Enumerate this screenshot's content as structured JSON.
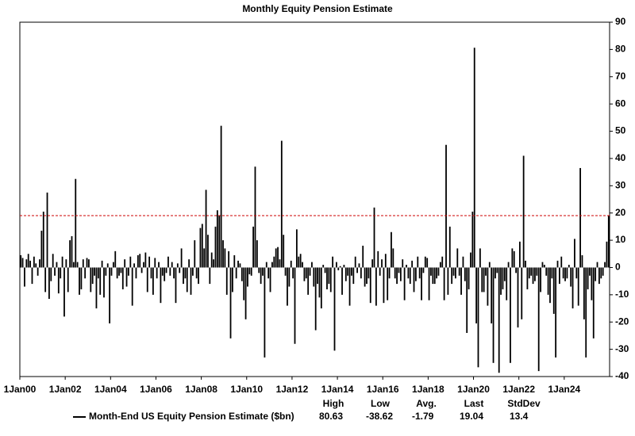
{
  "chart_data": {
    "type": "bar",
    "title": "Monthly Equity Pension Estimate",
    "categories": [
      "1Jan00",
      null,
      null,
      null,
      null,
      null,
      null,
      null,
      null,
      null,
      null,
      null,
      null,
      null,
      null,
      null,
      null,
      null,
      null,
      null,
      null,
      null,
      null,
      null,
      "1Jan02",
      null,
      null,
      null,
      null,
      null,
      null,
      null,
      null,
      null,
      null,
      null,
      null,
      null,
      null,
      null,
      null,
      null,
      null,
      null,
      null,
      null,
      null,
      null,
      "1Jan04",
      null,
      null,
      null,
      null,
      null,
      null,
      null,
      null,
      null,
      null,
      null,
      null,
      null,
      null,
      null,
      null,
      null,
      null,
      null,
      null,
      null,
      null,
      null,
      "1Jan06",
      null,
      null,
      null,
      null,
      null,
      null,
      null,
      null,
      null,
      null,
      null,
      null,
      null,
      null,
      null,
      null,
      null,
      null,
      null,
      null,
      null,
      null,
      null,
      "1Jan08",
      null,
      null,
      null,
      null,
      null,
      null,
      null,
      null,
      null,
      null,
      null,
      null,
      null,
      null,
      null,
      null,
      null,
      null,
      null,
      null,
      null,
      null,
      null,
      "1Jan10",
      null,
      null,
      null,
      null,
      null,
      null,
      null,
      null,
      null,
      null,
      null,
      null,
      null,
      null,
      null,
      null,
      null,
      null,
      null,
      null,
      null,
      null,
      null,
      "1Jan12",
      null,
      null,
      null,
      null,
      null,
      null,
      null,
      null,
      null,
      null,
      null,
      null,
      null,
      null,
      null,
      null,
      null,
      null,
      null,
      null,
      null,
      null,
      null,
      "1Jan14",
      null,
      null,
      null,
      null,
      null,
      null,
      null,
      null,
      null,
      null,
      null,
      null,
      null,
      null,
      null,
      null,
      null,
      null,
      null,
      null,
      null,
      null,
      null,
      "1Jan16",
      null,
      null,
      null,
      null,
      null,
      null,
      null,
      null,
      null,
      null,
      null,
      null,
      null,
      null,
      null,
      null,
      null,
      null,
      null,
      null,
      null,
      null,
      null,
      "1Jan18",
      null,
      null,
      null,
      null,
      null,
      null,
      null,
      null,
      null,
      null,
      null,
      null,
      null,
      null,
      null,
      null,
      null,
      null,
      null,
      null,
      null,
      null,
      null,
      "1Jan20",
      null,
      null,
      null,
      null,
      null,
      null,
      null,
      null,
      null,
      null,
      null,
      null,
      null,
      null,
      null,
      null,
      null,
      null,
      null,
      null,
      null,
      null,
      null,
      "1Jan22",
      null,
      null,
      null,
      null,
      null,
      null,
      null,
      null,
      null,
      null,
      null,
      null,
      null,
      null,
      null,
      null,
      null,
      null,
      null,
      null,
      null,
      null,
      null,
      "1Jan24",
      null,
      null,
      null,
      null,
      null,
      null,
      null,
      null,
      null,
      null,
      null,
      null,
      null,
      null,
      null,
      null,
      null,
      null,
      null,
      null,
      null,
      null,
      null
    ],
    "series": [
      {
        "name": "Month-End US Equity Pension Estimate ($bn)",
        "color": "#000000",
        "values": [
          4.5,
          3.5,
          -7,
          3,
          5,
          2.5,
          -6,
          4,
          1.5,
          -3,
          3,
          13.5,
          20.5,
          -9,
          27.5,
          -11.5,
          -5,
          5,
          -3,
          2,
          -9.5,
          -4,
          4,
          -18,
          3,
          -9,
          10,
          11.5,
          2,
          32.5,
          2,
          -10,
          -8,
          3,
          -4,
          3.5,
          3,
          -9,
          -6,
          -3,
          -15,
          -4,
          -10,
          2.5,
          -11,
          -3,
          1.5,
          -20.5,
          -3,
          2,
          6,
          -4,
          -3,
          -2,
          -8,
          3,
          -7,
          -3,
          4,
          -14,
          1.5,
          -4,
          4.5,
          5,
          -2,
          2,
          5.5,
          -9,
          4,
          -4,
          -10,
          3.5,
          -4,
          2,
          -13,
          -3,
          -5,
          -2,
          4,
          -3,
          2,
          -4,
          -13,
          1.5,
          -2,
          7,
          -6,
          -4,
          -9,
          3,
          -10,
          -3,
          10,
          -4,
          -6,
          14.5,
          16,
          7,
          28.5,
          12,
          -6,
          5.5,
          3,
          15,
          21,
          19,
          52,
          10,
          7,
          -10,
          6,
          -26,
          -9,
          4.5,
          -4,
          2.5,
          1.5,
          -5,
          -12,
          -19,
          -7,
          -2.5,
          -3,
          15,
          37,
          10,
          -2,
          -6,
          -3,
          -33,
          2,
          -4,
          -9,
          2,
          4,
          7,
          7.5,
          3,
          46.5,
          12,
          -3,
          -14,
          -7,
          2.5,
          -4,
          -28,
          14,
          4,
          5,
          2,
          -5,
          -4,
          -10,
          -3,
          2,
          -7,
          -23,
          -6,
          -11,
          -15,
          1,
          -2,
          -8,
          -6,
          -9,
          4,
          -30.5,
          2,
          -1,
          0.5,
          -10,
          1,
          -5,
          -3,
          -14,
          -3,
          -6,
          4,
          -2,
          1.5,
          -4,
          8,
          -7,
          -6,
          -4,
          -13,
          3,
          22,
          -14,
          6,
          -3,
          3,
          -13,
          5,
          -12,
          -4,
          13,
          7,
          -4,
          -6,
          -2,
          -5,
          3,
          -12,
          1,
          -4,
          -6,
          2.5,
          -9,
          -5,
          4,
          -4,
          -12,
          -2,
          4,
          3.5,
          -12,
          -3,
          -6,
          -6,
          -4,
          -3,
          2,
          4,
          -12,
          45,
          -10,
          15,
          -6,
          -3,
          -4,
          7,
          -3,
          -10,
          4,
          -5,
          -24,
          -8,
          5.5,
          20.5,
          80.63,
          -20.5,
          -36.6,
          7,
          -9,
          -9,
          -3,
          -14,
          2,
          -20.5,
          -35,
          -4,
          -2,
          -38.62,
          -10,
          -8,
          -5,
          -12,
          2,
          -35,
          7,
          6,
          -2,
          -22,
          9.5,
          -19,
          41,
          2.5,
          -8,
          -4,
          -3,
          -6,
          -5,
          -3,
          -38,
          -9,
          2,
          1,
          -3,
          -10,
          -13,
          -4,
          -17,
          -33,
          2.5,
          -6,
          4,
          -4,
          -5,
          -4,
          1,
          -7,
          -15,
          10.5,
          -4,
          -14,
          36.5,
          4.5,
          -19,
          -33,
          -8,
          -3,
          -12,
          -26,
          -5,
          2,
          -6,
          -4,
          -3,
          2,
          9.5,
          19.04
        ]
      }
    ],
    "ylim": [
      -40,
      90
    ],
    "yticks": [
      -40,
      -30,
      -20,
      -10,
      0,
      10,
      20,
      30,
      40,
      50,
      60,
      70,
      80,
      90
    ],
    "grid": false,
    "y_axis_side": "right",
    "reference_line_color": "#cc0000",
    "stats": {
      "headers": [
        "High",
        "Low",
        "Avg.",
        "Last",
        "StdDev"
      ],
      "values": [
        80.63,
        -38.62,
        -1.79,
        19.04,
        13.4
      ]
    }
  }
}
